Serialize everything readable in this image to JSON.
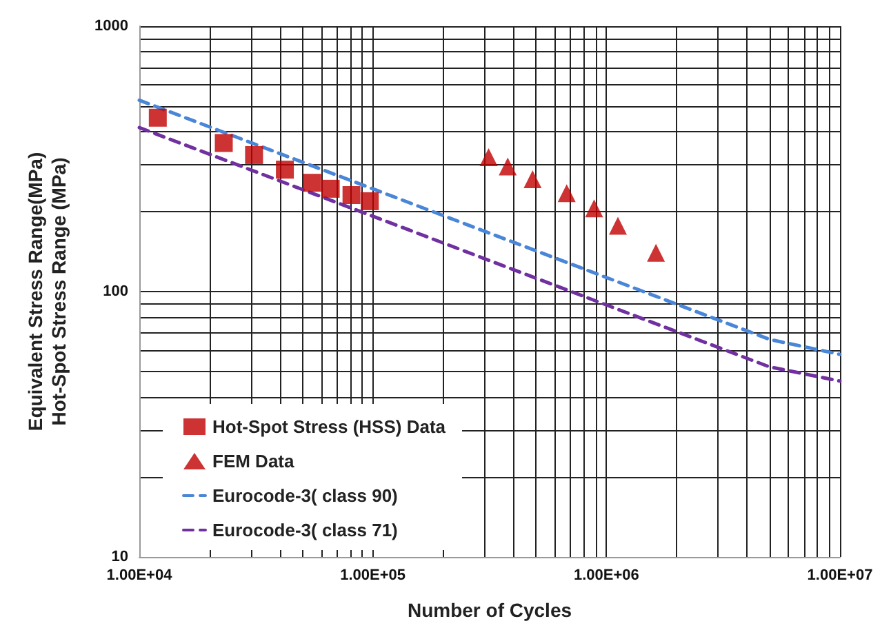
{
  "chart_data": {
    "type": "scatter",
    "xlabel": "Number of Cycles",
    "ylabel": "Equivalent Stress Range(MPa)\nHot-Spot Stress Range (MPa)",
    "log": "xy",
    "grid": true,
    "legend": "bottom left",
    "xlim": [
      10000,
      10000000
    ],
    "xticks": [
      {
        "value": 10000,
        "label": "1.00E+04"
      },
      {
        "value": 100000,
        "label": "1.00E+05"
      },
      {
        "value": 1000000,
        "label": "1.00E+06"
      },
      {
        "value": 10000000,
        "label": "1.00E+07"
      }
    ],
    "ylim": [
      10,
      1000
    ],
    "yticks": [
      10,
      100,
      1000
    ],
    "series": [
      {
        "name": "Hot-Spot Stress (HSS) Data",
        "marker": "square",
        "color": "#c00000",
        "x": [
          12000,
          23000,
          31000,
          42000,
          55000,
          66000,
          81000,
          97000
        ],
        "values": [
          452,
          363,
          327,
          288,
          257,
          244,
          231,
          219
        ]
      },
      {
        "name": "FEM Data",
        "marker": "triangle",
        "color": "#c00000",
        "x": [
          313000,
          378000,
          483000,
          676000,
          886000,
          1120000,
          1630000
        ],
        "values": [
          321,
          296,
          265,
          235,
          206,
          177,
          140
        ]
      },
      {
        "name": "Eurocode-3( class 90)",
        "type": "line",
        "line_style": "dashed",
        "color": "#4a86d8",
        "x": [
          10000,
          5000000,
          10000000
        ],
        "values": [
          526,
          66,
          58
        ]
      },
      {
        "name": "Eurocode-3( class 71)",
        "type": "line",
        "line_style": "dashed",
        "color": "#7030a0",
        "x": [
          10000,
          5000000,
          10000000
        ],
        "values": [
          415,
          52,
          46
        ]
      }
    ]
  }
}
